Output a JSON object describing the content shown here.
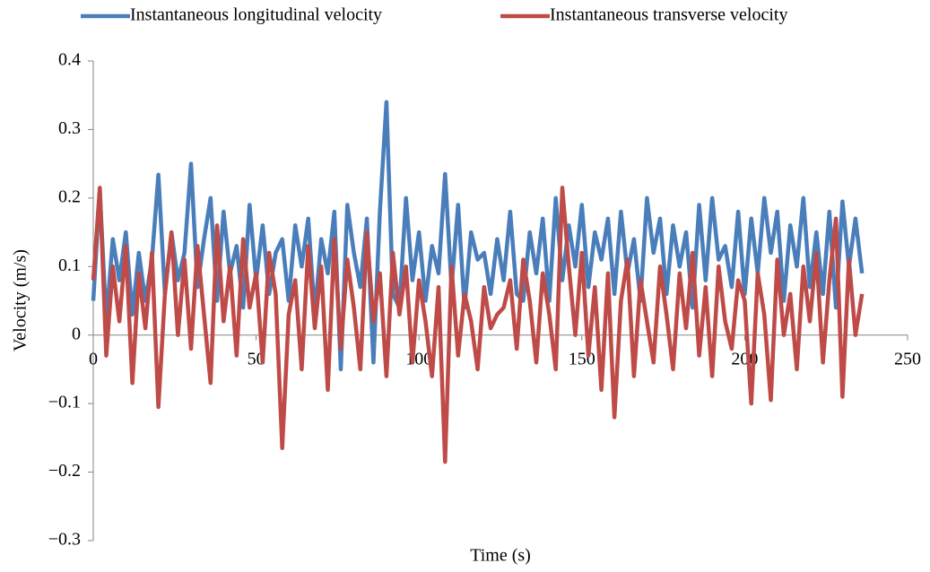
{
  "chart_data": {
    "type": "line",
    "x_label": "Time (s)",
    "y_label": "Velocity (m/s)",
    "x": [
      0,
      2,
      4,
      6,
      8,
      10,
      12,
      14,
      16,
      18,
      20,
      22,
      24,
      26,
      28,
      30,
      32,
      34,
      36,
      38,
      40,
      42,
      44,
      46,
      48,
      50,
      52,
      54,
      56,
      58,
      60,
      62,
      64,
      66,
      68,
      70,
      72,
      74,
      76,
      78,
      80,
      82,
      84,
      86,
      88,
      90,
      92,
      94,
      96,
      98,
      100,
      102,
      104,
      106,
      108,
      110,
      112,
      114,
      116,
      118,
      120,
      122,
      124,
      126,
      128,
      130,
      132,
      134,
      136,
      138,
      140,
      142,
      144,
      146,
      148,
      150,
      152,
      154,
      156,
      158,
      160,
      162,
      164,
      166,
      168,
      170,
      172,
      174,
      176,
      178,
      180,
      182,
      184,
      186,
      188,
      190,
      192,
      194,
      196,
      198,
      200,
      202,
      204,
      206,
      208,
      210,
      212,
      214,
      216,
      218,
      220,
      222,
      224,
      226,
      228,
      230,
      232,
      234,
      236
    ],
    "series": [
      {
        "name": "Instantaneous longitudinal velocity",
        "color": "#4a7ebb",
        "values": [
          0.05,
          0.21,
          0.02,
          0.14,
          0.08,
          0.15,
          0.03,
          0.12,
          0.05,
          0.11,
          0.234,
          0.06,
          0.15,
          0.08,
          0.12,
          0.25,
          0.07,
          0.14,
          0.2,
          0.05,
          0.18,
          0.09,
          0.13,
          0.04,
          0.19,
          0.08,
          0.16,
          0.06,
          0.12,
          0.14,
          0.05,
          0.16,
          0.1,
          0.17,
          0.03,
          0.14,
          0.09,
          0.18,
          -0.05,
          0.19,
          0.12,
          0.07,
          0.17,
          -0.04,
          0.18,
          0.34,
          0.06,
          0.04,
          0.2,
          0.08,
          0.15,
          0.05,
          0.13,
          0.09,
          0.235,
          0.07,
          0.19,
          0.04,
          0.15,
          0.11,
          0.12,
          0.06,
          0.14,
          0.08,
          0.18,
          0.06,
          0.05,
          0.15,
          0.09,
          0.17,
          0.05,
          0.2,
          0.08,
          0.16,
          0.1,
          0.19,
          0.07,
          0.15,
          0.11,
          0.17,
          0.06,
          0.18,
          0.09,
          0.14,
          0.05,
          0.2,
          0.12,
          0.17,
          0.06,
          0.16,
          0.1,
          0.15,
          0.04,
          0.19,
          0.08,
          0.2,
          0.11,
          0.13,
          0.07,
          0.18,
          0.06,
          0.17,
          0.09,
          0.2,
          0.12,
          0.18,
          0.05,
          0.16,
          0.1,
          0.2,
          0.07,
          0.15,
          0.06,
          0.18,
          0.04,
          0.195,
          0.1,
          0.17,
          0.09
        ]
      },
      {
        "name": "Instantaneous transverse velocity",
        "color": "#be4b48",
        "values": [
          0.08,
          0.215,
          -0.03,
          0.1,
          0.02,
          0.13,
          -0.07,
          0.09,
          0.01,
          0.12,
          -0.105,
          0.06,
          0.15,
          0.0,
          0.11,
          -0.02,
          0.13,
          0.03,
          -0.07,
          0.16,
          0.02,
          0.1,
          -0.03,
          0.14,
          0.04,
          0.09,
          -0.04,
          0.12,
          0.06,
          -0.165,
          0.03,
          0.08,
          -0.05,
          0.13,
          0.01,
          0.1,
          -0.08,
          0.14,
          -0.02,
          0.11,
          0.04,
          -0.05,
          0.15,
          0.02,
          0.09,
          -0.06,
          0.12,
          0.03,
          0.1,
          -0.04,
          0.08,
          0.02,
          -0.06,
          0.07,
          -0.185,
          0.1,
          -0.03,
          0.06,
          0.02,
          -0.05,
          0.07,
          0.01,
          0.03,
          0.04,
          0.08,
          -0.02,
          0.11,
          0.05,
          -0.04,
          0.09,
          0.03,
          -0.05,
          0.215,
          0.1,
          0.0,
          0.12,
          -0.03,
          0.07,
          -0.08,
          0.09,
          -0.12,
          0.05,
          0.11,
          -0.06,
          0.08,
          0.02,
          -0.04,
          0.1,
          0.03,
          -0.05,
          0.09,
          0.01,
          0.12,
          -0.03,
          0.07,
          -0.06,
          0.1,
          0.02,
          -0.02,
          0.08,
          0.05,
          -0.1,
          0.09,
          0.03,
          -0.095,
          0.11,
          0.0,
          0.06,
          -0.05,
          0.1,
          0.02,
          0.12,
          -0.04,
          0.08,
          0.17,
          -0.09,
          0.11,
          0.0,
          0.06
        ]
      }
    ],
    "xlim": [
      0,
      250
    ],
    "xticks": [
      0,
      50,
      100,
      150,
      200,
      250
    ],
    "ylim": [
      -0.3,
      0.4
    ],
    "yticks": [
      {
        "value": -0.3,
        "label": "−0.3"
      },
      {
        "value": -0.2,
        "label": "−0.2"
      },
      {
        "value": -0.1,
        "label": "−0.1"
      },
      0,
      0.1,
      0.2,
      0.3,
      0.4
    ],
    "legend": "top"
  }
}
